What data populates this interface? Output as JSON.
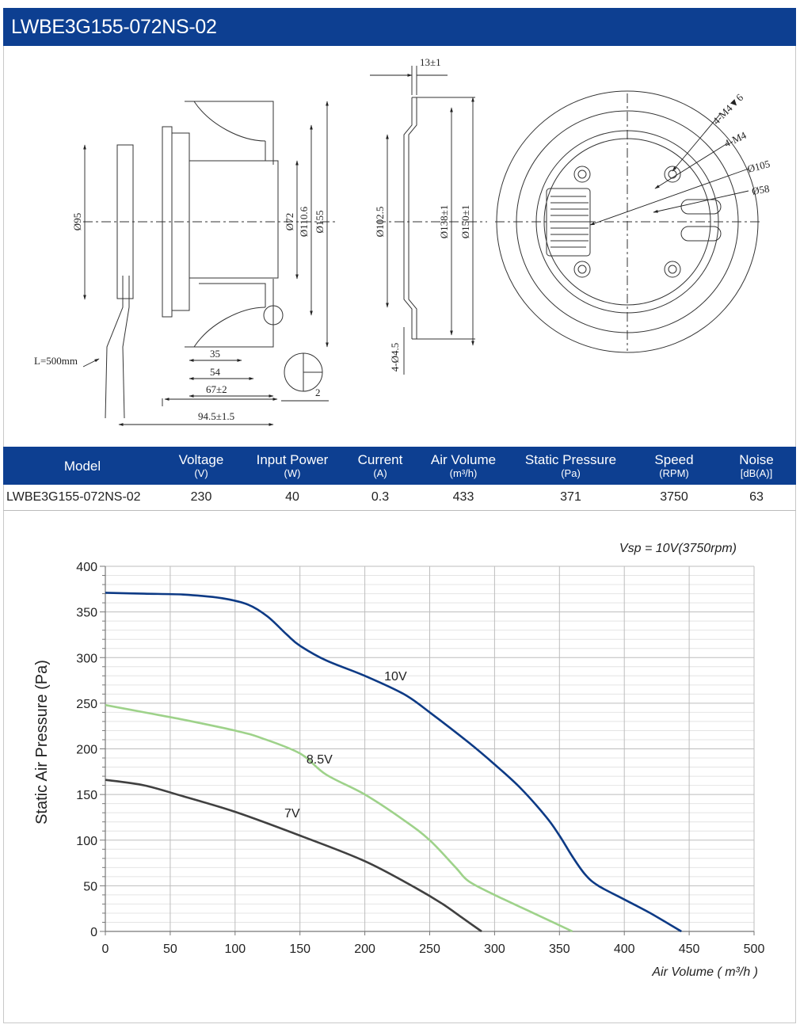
{
  "title": "LWBE3G155-072NS-02",
  "drawing": {
    "side_dims": {
      "d95": "Ø95",
      "d72": "Ø72",
      "d110": "Ø110.6",
      "d155": "Ø155",
      "cable": "L=500mm",
      "w35": "35",
      "w54": "54",
      "w67": "67±2",
      "w94": "94.5±1.5",
      "w2": "2"
    },
    "middle_dims": {
      "top": "13±1",
      "d102": "Ø102.5",
      "d138": "Ø138±1",
      "d150": "Ø150±1",
      "holes": "4-Ø4.5"
    },
    "front_dims": {
      "m4d6": "4-M4▼6",
      "m4": "4-M4",
      "d105": "Ø105",
      "d58": "Ø58"
    }
  },
  "table": {
    "headers": [
      {
        "name": "Model",
        "unit": ""
      },
      {
        "name": "Voltage",
        "unit": "(V)"
      },
      {
        "name": "Input Power",
        "unit": "(W)"
      },
      {
        "name": "Current",
        "unit": "(A)"
      },
      {
        "name": "Air Volume",
        "unit": "(m³/h)"
      },
      {
        "name": "Static Pressure",
        "unit": "(Pa)"
      },
      {
        "name": "Speed",
        "unit": "(RPM)"
      },
      {
        "name": "Noise",
        "unit": "[dB(A)]"
      }
    ],
    "row": [
      "LWBE3G155-072NS-02",
      "230",
      "40",
      "0.3",
      "433",
      "371",
      "3750",
      "63"
    ]
  },
  "chart_data": {
    "type": "line",
    "title": "",
    "annotation": "Vsp = 10V(3750rpm)",
    "xlabel": "Air Volume ( m³/h )",
    "ylabel": "Static Air Pressure  (Pa)",
    "xlim": [
      0,
      500
    ],
    "ylim": [
      0,
      400
    ],
    "xticks": [
      0,
      50,
      100,
      150,
      200,
      250,
      300,
      350,
      400,
      450,
      500
    ],
    "yticks": [
      0,
      50,
      100,
      150,
      200,
      250,
      300,
      350,
      400
    ],
    "grid": true,
    "series": [
      {
        "name": "10V",
        "color": "#0d3a85",
        "label_at": [
          215,
          275
        ],
        "x": [
          0,
          30,
          60,
          90,
          110,
          125,
          140,
          150,
          170,
          200,
          230,
          250,
          280,
          300,
          320,
          340,
          350,
          360,
          370,
          380,
          400,
          420,
          444
        ],
        "y": [
          371,
          370,
          369,
          365,
          358,
          345,
          325,
          313,
          297,
          280,
          260,
          240,
          207,
          183,
          157,
          125,
          105,
          82,
          62,
          50,
          35,
          20,
          0
        ]
      },
      {
        "name": "8.5V",
        "color": "#9ed28a",
        "label_at": [
          155,
          184
        ],
        "x": [
          0,
          30,
          60,
          100,
          120,
          150,
          170,
          200,
          230,
          250,
          270,
          280,
          300,
          330,
          360
        ],
        "y": [
          248,
          240,
          232,
          220,
          212,
          195,
          172,
          150,
          122,
          100,
          70,
          55,
          40,
          20,
          0
        ]
      },
      {
        "name": "7V",
        "color": "#404040",
        "label_at": [
          138,
          125
        ],
        "x": [
          0,
          30,
          60,
          100,
          150,
          200,
          240,
          260,
          275,
          290
        ],
        "y": [
          166,
          160,
          148,
          131,
          105,
          77,
          47,
          30,
          15,
          0
        ]
      }
    ]
  }
}
